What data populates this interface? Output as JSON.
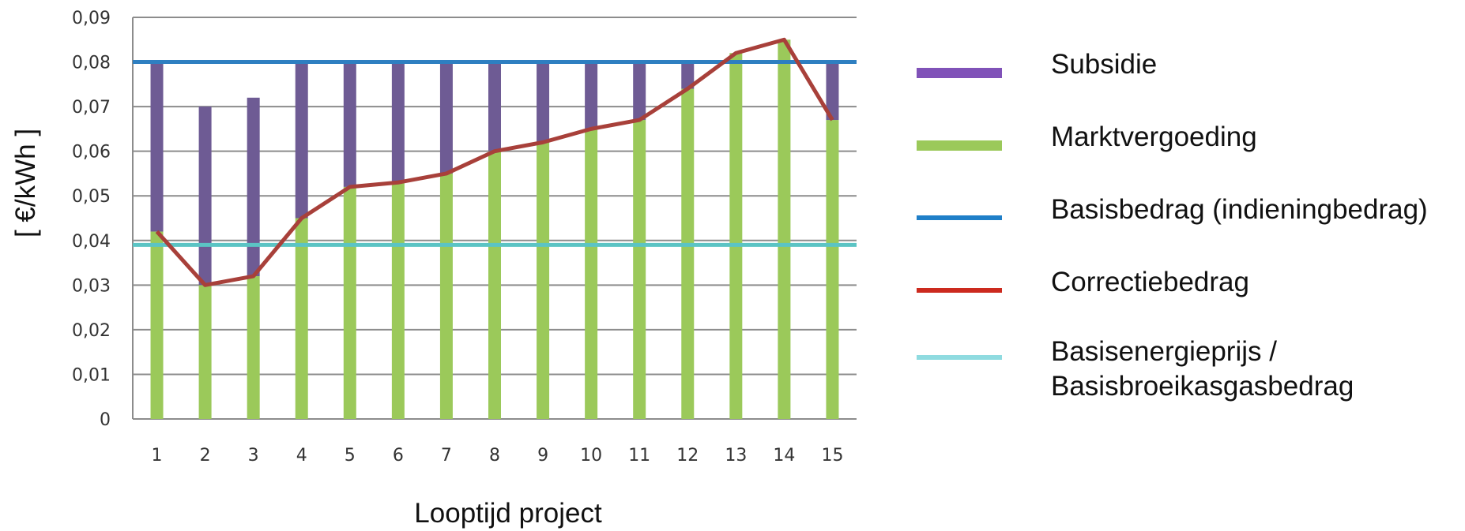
{
  "chart_data": {
    "type": "bar",
    "xlabel": "Looptijd project",
    "ylabel": "[ €/kWh ]",
    "ylim": [
      0,
      0.09
    ],
    "yticks": [
      "0",
      "0,01",
      "0,02",
      "0,03",
      "0,04",
      "0,05",
      "0,06",
      "0,07",
      "0,08",
      "0,09"
    ],
    "categories": [
      "1",
      "2",
      "3",
      "4",
      "5",
      "6",
      "7",
      "8",
      "9",
      "10",
      "11",
      "12",
      "13",
      "14",
      "15"
    ],
    "grid": true,
    "legend_position": "right",
    "series": [
      {
        "name": "Marktvergoeding",
        "kind": "bar-bottom",
        "color": "#9BC95A",
        "values": [
          0.042,
          0.03,
          0.032,
          0.045,
          0.052,
          0.053,
          0.055,
          0.06,
          0.062,
          0.065,
          0.067,
          0.074,
          0.082,
          0.085,
          0.067
        ]
      },
      {
        "name": "Subsidie",
        "kind": "bar-top",
        "color": "#6E5B94",
        "values": [
          0.038,
          0.04,
          0.04,
          0.035,
          0.028,
          0.027,
          0.025,
          0.02,
          0.018,
          0.015,
          0.013,
          0.006,
          0.0,
          0.0,
          0.013
        ]
      },
      {
        "name": "Basisbedrag (indieningbedrag)",
        "kind": "hline",
        "color": "#2E7FC1",
        "value": 0.08
      },
      {
        "name": "Basisenergieprijs /\nBasisbroeikasgasbedrag",
        "kind": "hline",
        "color": "#5BC4C4",
        "value": 0.039
      },
      {
        "name": "Correctiebedrag",
        "kind": "line",
        "color": "#A8403A",
        "values": [
          0.042,
          0.03,
          0.032,
          0.045,
          0.052,
          0.053,
          0.055,
          0.06,
          0.062,
          0.065,
          0.067,
          0.074,
          0.082,
          0.085,
          0.067
        ]
      }
    ]
  },
  "legend": [
    {
      "label": "Subsidie",
      "color": "#8052B8",
      "icon": "purple-bar"
    },
    {
      "label": "Marktvergoeding",
      "color": "#9BC95A",
      "icon": "green-bar"
    },
    {
      "label": "Basisbedrag (indieningbedrag)",
      "color": "#1F7FC8",
      "icon": "blue-line"
    },
    {
      "label": "Correctiebedrag",
      "color": "#CC2A1E",
      "icon": "red-line"
    },
    {
      "label": "Basisenergieprijs /\nBasisbroeikasgasbedrag",
      "color": "#8FDBE0",
      "icon": "cyan-line"
    }
  ]
}
